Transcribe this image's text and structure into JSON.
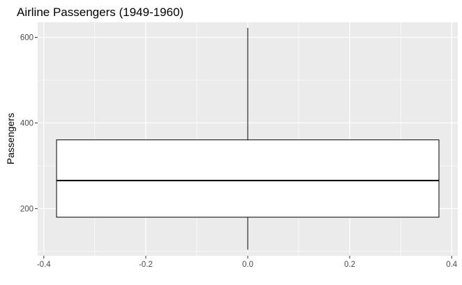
{
  "chart_data": {
    "type": "boxplot",
    "title": "Airline Passengers (1949-1960)",
    "xlabel": "",
    "ylabel": "Passengers",
    "xlim": [
      -0.412,
      0.412
    ],
    "ylim": [
      90,
      635
    ],
    "x_ticks": [
      -0.4,
      -0.2,
      0.0,
      0.2,
      0.4
    ],
    "x_tick_labels": [
      "-0.4",
      "-0.2",
      "0.0",
      "0.2",
      "0.4"
    ],
    "y_ticks": [
      200,
      400,
      600
    ],
    "y_tick_labels": [
      "200",
      "400",
      "600"
    ],
    "grid": true,
    "legend": "none",
    "box": {
      "x": 0,
      "box_left": -0.375,
      "box_right": 0.375,
      "min": 104,
      "q1": 180,
      "median": 265.5,
      "q3": 360.5,
      "max": 622
    },
    "colors": {
      "panel_background": "#EBEBEB",
      "grid": "#FFFFFF",
      "box_fill": "#FFFFFF",
      "box_stroke": "#000000"
    }
  }
}
